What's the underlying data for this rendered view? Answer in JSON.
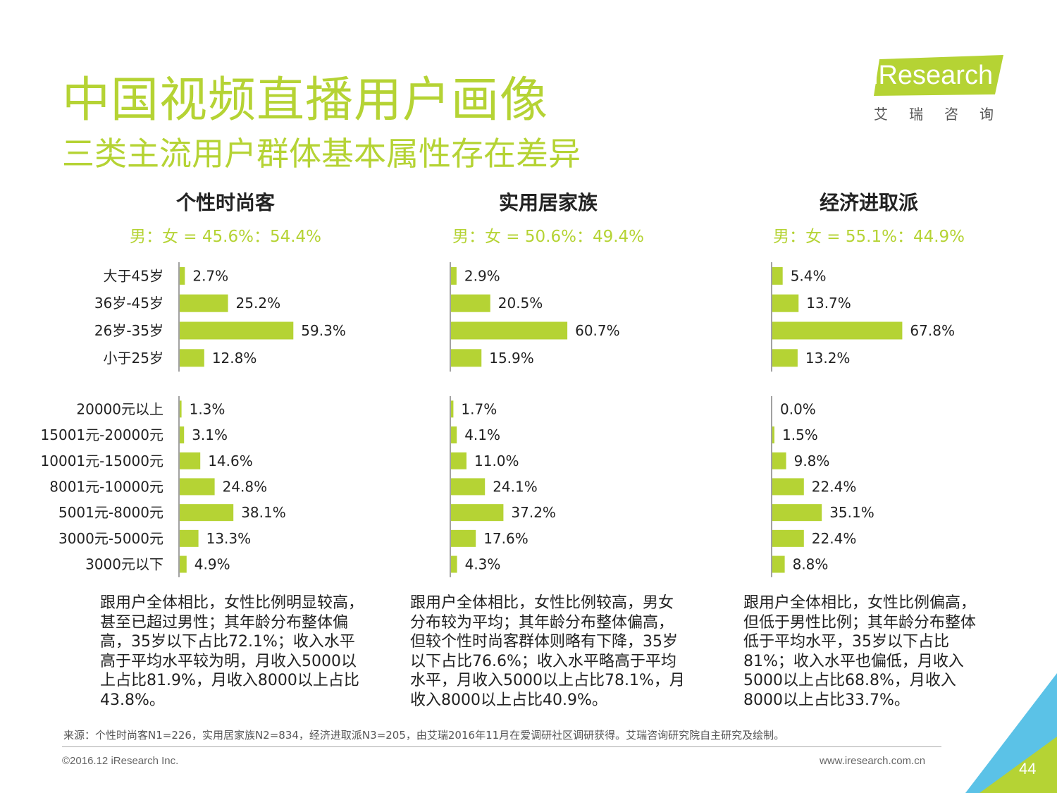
{
  "header": {
    "title": "中国视频直播用户画像",
    "subtitle": "三类主流用户群体基本属性存在差异",
    "logo_text": "iResearch",
    "logo_sub": "艾瑞咨询"
  },
  "colors": {
    "accent": "#b5d334",
    "bar": "#b5d334",
    "text": "#222222",
    "axis": "#444444"
  },
  "groups": [
    {
      "name": "个性时尚客",
      "ratio": "男：女 = 45.6%：54.4%",
      "desc": "跟用户全体相比，女性比例明显较高，甚至已超过男性；其年龄分布整体偏高，35岁以下占比72.1%；收入水平高于平均水平较为明，月收入5000以上占比81.9%，月收入8000以上占比43.8%。"
    },
    {
      "name": "实用居家族",
      "ratio": "男：女 = 50.6%：49.4%",
      "desc": "跟用户全体相比，女性比例较高，男女分布较为平均；其年龄分布整体偏高，但较个性时尚客群体则略有下降，35岁以下占比76.6%；收入水平略高于平均水平，月收入5000以上占比78.1%，月收入8000以上占比40.9%。"
    },
    {
      "name": "经济进取派",
      "ratio": "男：女 = 55.1%：44.9%",
      "desc": "跟用户全体相比，女性比例偏高，但低于男性比例；其年龄分布整体低于平均水平，35岁以下占比81%；收入水平也偏低，月收入5000以上占比68.8%，月收入8000以上占比33.7%。"
    }
  ],
  "chart_data": [
    {
      "type": "bar",
      "orientation": "horizontal",
      "group": "个性时尚客",
      "topic": "age",
      "categories": [
        "大于45岁",
        "36岁-45岁",
        "26岁-35岁",
        "小于25岁"
      ],
      "values": [
        2.7,
        25.2,
        59.3,
        12.8
      ],
      "labels": [
        "2.7%",
        "25.2%",
        "59.3%",
        "12.8%"
      ]
    },
    {
      "type": "bar",
      "orientation": "horizontal",
      "group": "实用居家族",
      "topic": "age",
      "categories": [
        "大于45岁",
        "36岁-45岁",
        "26岁-35岁",
        "小于25岁"
      ],
      "values": [
        2.9,
        20.5,
        60.7,
        15.9
      ],
      "labels": [
        "2.9%",
        "20.5%",
        "60.7%",
        "15.9%"
      ]
    },
    {
      "type": "bar",
      "orientation": "horizontal",
      "group": "经济进取派",
      "topic": "age",
      "categories": [
        "大于45岁",
        "36岁-45岁",
        "26岁-35岁",
        "小于25岁"
      ],
      "values": [
        5.4,
        13.7,
        67.8,
        13.2
      ],
      "labels": [
        "5.4%",
        "13.7%",
        "67.8%",
        "13.2%"
      ]
    },
    {
      "type": "bar",
      "orientation": "horizontal",
      "group": "个性时尚客",
      "topic": "income",
      "categories": [
        "20000元以上",
        "15001元-20000元",
        "10001元-15000元",
        "8001元-10000元",
        "5001元-8000元",
        "3000元-5000元",
        "3000元以下"
      ],
      "values": [
        1.3,
        3.1,
        14.6,
        24.8,
        38.1,
        13.3,
        4.9
      ],
      "labels": [
        "1.3%",
        "3.1%",
        "14.6%",
        "24.8%",
        "38.1%",
        "13.3%",
        "4.9%"
      ]
    },
    {
      "type": "bar",
      "orientation": "horizontal",
      "group": "实用居家族",
      "topic": "income",
      "categories": [
        "20000元以上",
        "15001元-20000元",
        "10001元-15000元",
        "8001元-10000元",
        "5001元-8000元",
        "3000元-5000元",
        "3000元以下"
      ],
      "values": [
        1.7,
        4.1,
        11.0,
        24.1,
        37.2,
        17.6,
        4.3
      ],
      "labels": [
        "1.7%",
        "4.1%",
        "11.0%",
        "24.1%",
        "37.2%",
        "17.6%",
        "4.3%"
      ]
    },
    {
      "type": "bar",
      "orientation": "horizontal",
      "group": "经济进取派",
      "topic": "income",
      "categories": [
        "20000元以上",
        "15001元-20000元",
        "10001元-15000元",
        "8001元-10000元",
        "5001元-8000元",
        "3000元-5000元",
        "3000元以下"
      ],
      "values": [
        0.0,
        1.5,
        9.8,
        22.4,
        35.1,
        22.4,
        8.8
      ],
      "labels": [
        "0.0%",
        "1.5%",
        "9.8%",
        "22.4%",
        "35.1%",
        "22.4%",
        "8.8%"
      ]
    }
  ],
  "footer": {
    "source": "来源：个性时尚客N1=226，实用居家族N2=834，经济进取派N3=205，由艾瑞2016年11月在爱调研社区调研获得。艾瑞咨询研究院自主研究及绘制。",
    "copyright": "©2016.12 iResearch Inc.",
    "website": "www.iresearch.com.cn",
    "page_number": "44"
  }
}
